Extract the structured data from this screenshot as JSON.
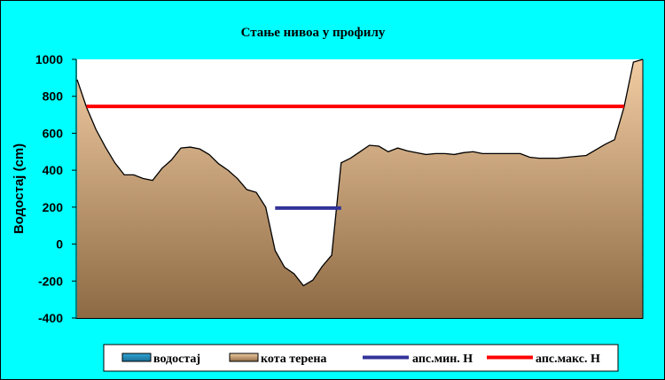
{
  "chart_data": {
    "type": "area",
    "title": "Стање нивоа у профилу",
    "xlabel": "",
    "ylabel": "Водостај (cm)",
    "ylim": [
      -400,
      1000
    ],
    "y_ticks": [
      -400,
      -200,
      0,
      200,
      400,
      600,
      800,
      1000
    ],
    "y_tick_labels": [
      "-400",
      "-200",
      "0",
      "200",
      "400",
      "600",
      "800",
      "1000"
    ],
    "grid": false,
    "legend_position": "bottom",
    "colors": {
      "background": "#00ffff",
      "plot_background": "#ffffff",
      "terrain_top": "#f1cca3",
      "terrain_bottom": "#8e6a44",
      "water_top": "#2fa6d6",
      "water_bottom": "#1a6d95",
      "min_level": "#333399",
      "max_level": "#ff0000"
    },
    "series": [
      {
        "name": "водостај",
        "kind": "area",
        "x": [],
        "y": []
      },
      {
        "name": "кота терена",
        "kind": "area",
        "x": [
          0,
          1,
          2,
          3,
          4,
          5,
          6,
          7,
          8,
          9,
          10,
          11,
          12,
          13,
          14,
          15,
          16,
          17,
          18,
          19,
          20,
          21,
          22,
          23,
          24,
          25,
          26,
          27,
          28,
          29,
          30,
          31,
          32,
          33,
          34,
          35,
          36,
          37,
          38,
          39,
          40,
          41,
          42,
          43,
          44,
          45,
          46,
          47,
          48,
          49,
          50,
          51,
          52,
          53,
          54,
          55,
          56,
          57,
          58,
          59,
          60
        ],
        "y": [
          890,
          740,
          620,
          525,
          440,
          375,
          375,
          355,
          345,
          410,
          455,
          520,
          525,
          515,
          485,
          435,
          400,
          355,
          295,
          280,
          200,
          -35,
          -125,
          -160,
          -225,
          -195,
          -120,
          -60,
          440,
          465,
          500,
          535,
          530,
          500,
          520,
          505,
          495,
          485,
          490,
          490,
          485,
          495,
          500,
          490,
          490,
          490,
          490,
          490,
          470,
          465,
          465,
          465,
          470,
          475,
          480,
          510,
          540,
          565,
          740,
          985,
          1000
        ]
      },
      {
        "name": "апс.мин. H",
        "kind": "line",
        "x": [
          21,
          28
        ],
        "y": [
          195,
          195
        ]
      },
      {
        "name": "апс.макс. H",
        "kind": "line",
        "x": [
          1,
          58
        ],
        "y": [
          745,
          745
        ]
      }
    ]
  }
}
